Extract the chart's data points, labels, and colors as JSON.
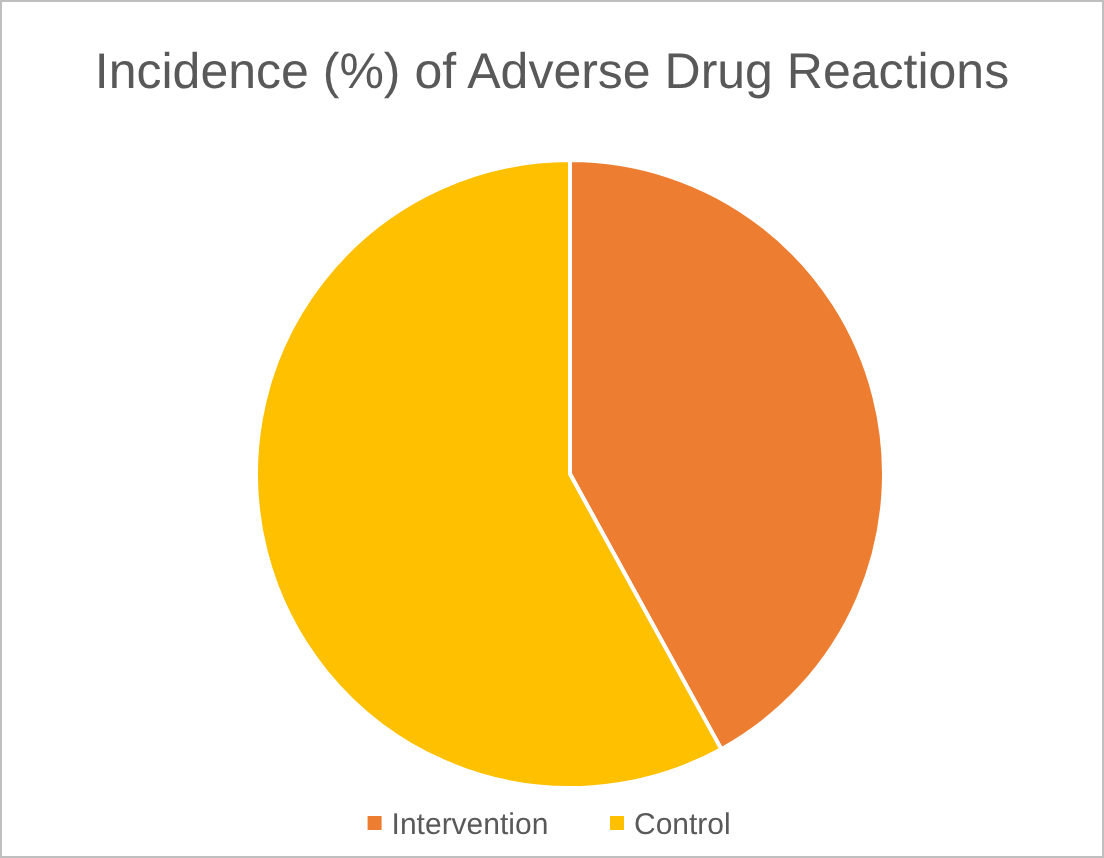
{
  "chart_data": {
    "type": "pie",
    "title": "Incidence (%) of Adverse Drug Reactions",
    "categories": [
      "Intervention",
      "Control"
    ],
    "values": [
      42,
      58
    ],
    "colors": [
      "#ed7d31",
      "#ffc000"
    ],
    "legend": "bottom"
  }
}
